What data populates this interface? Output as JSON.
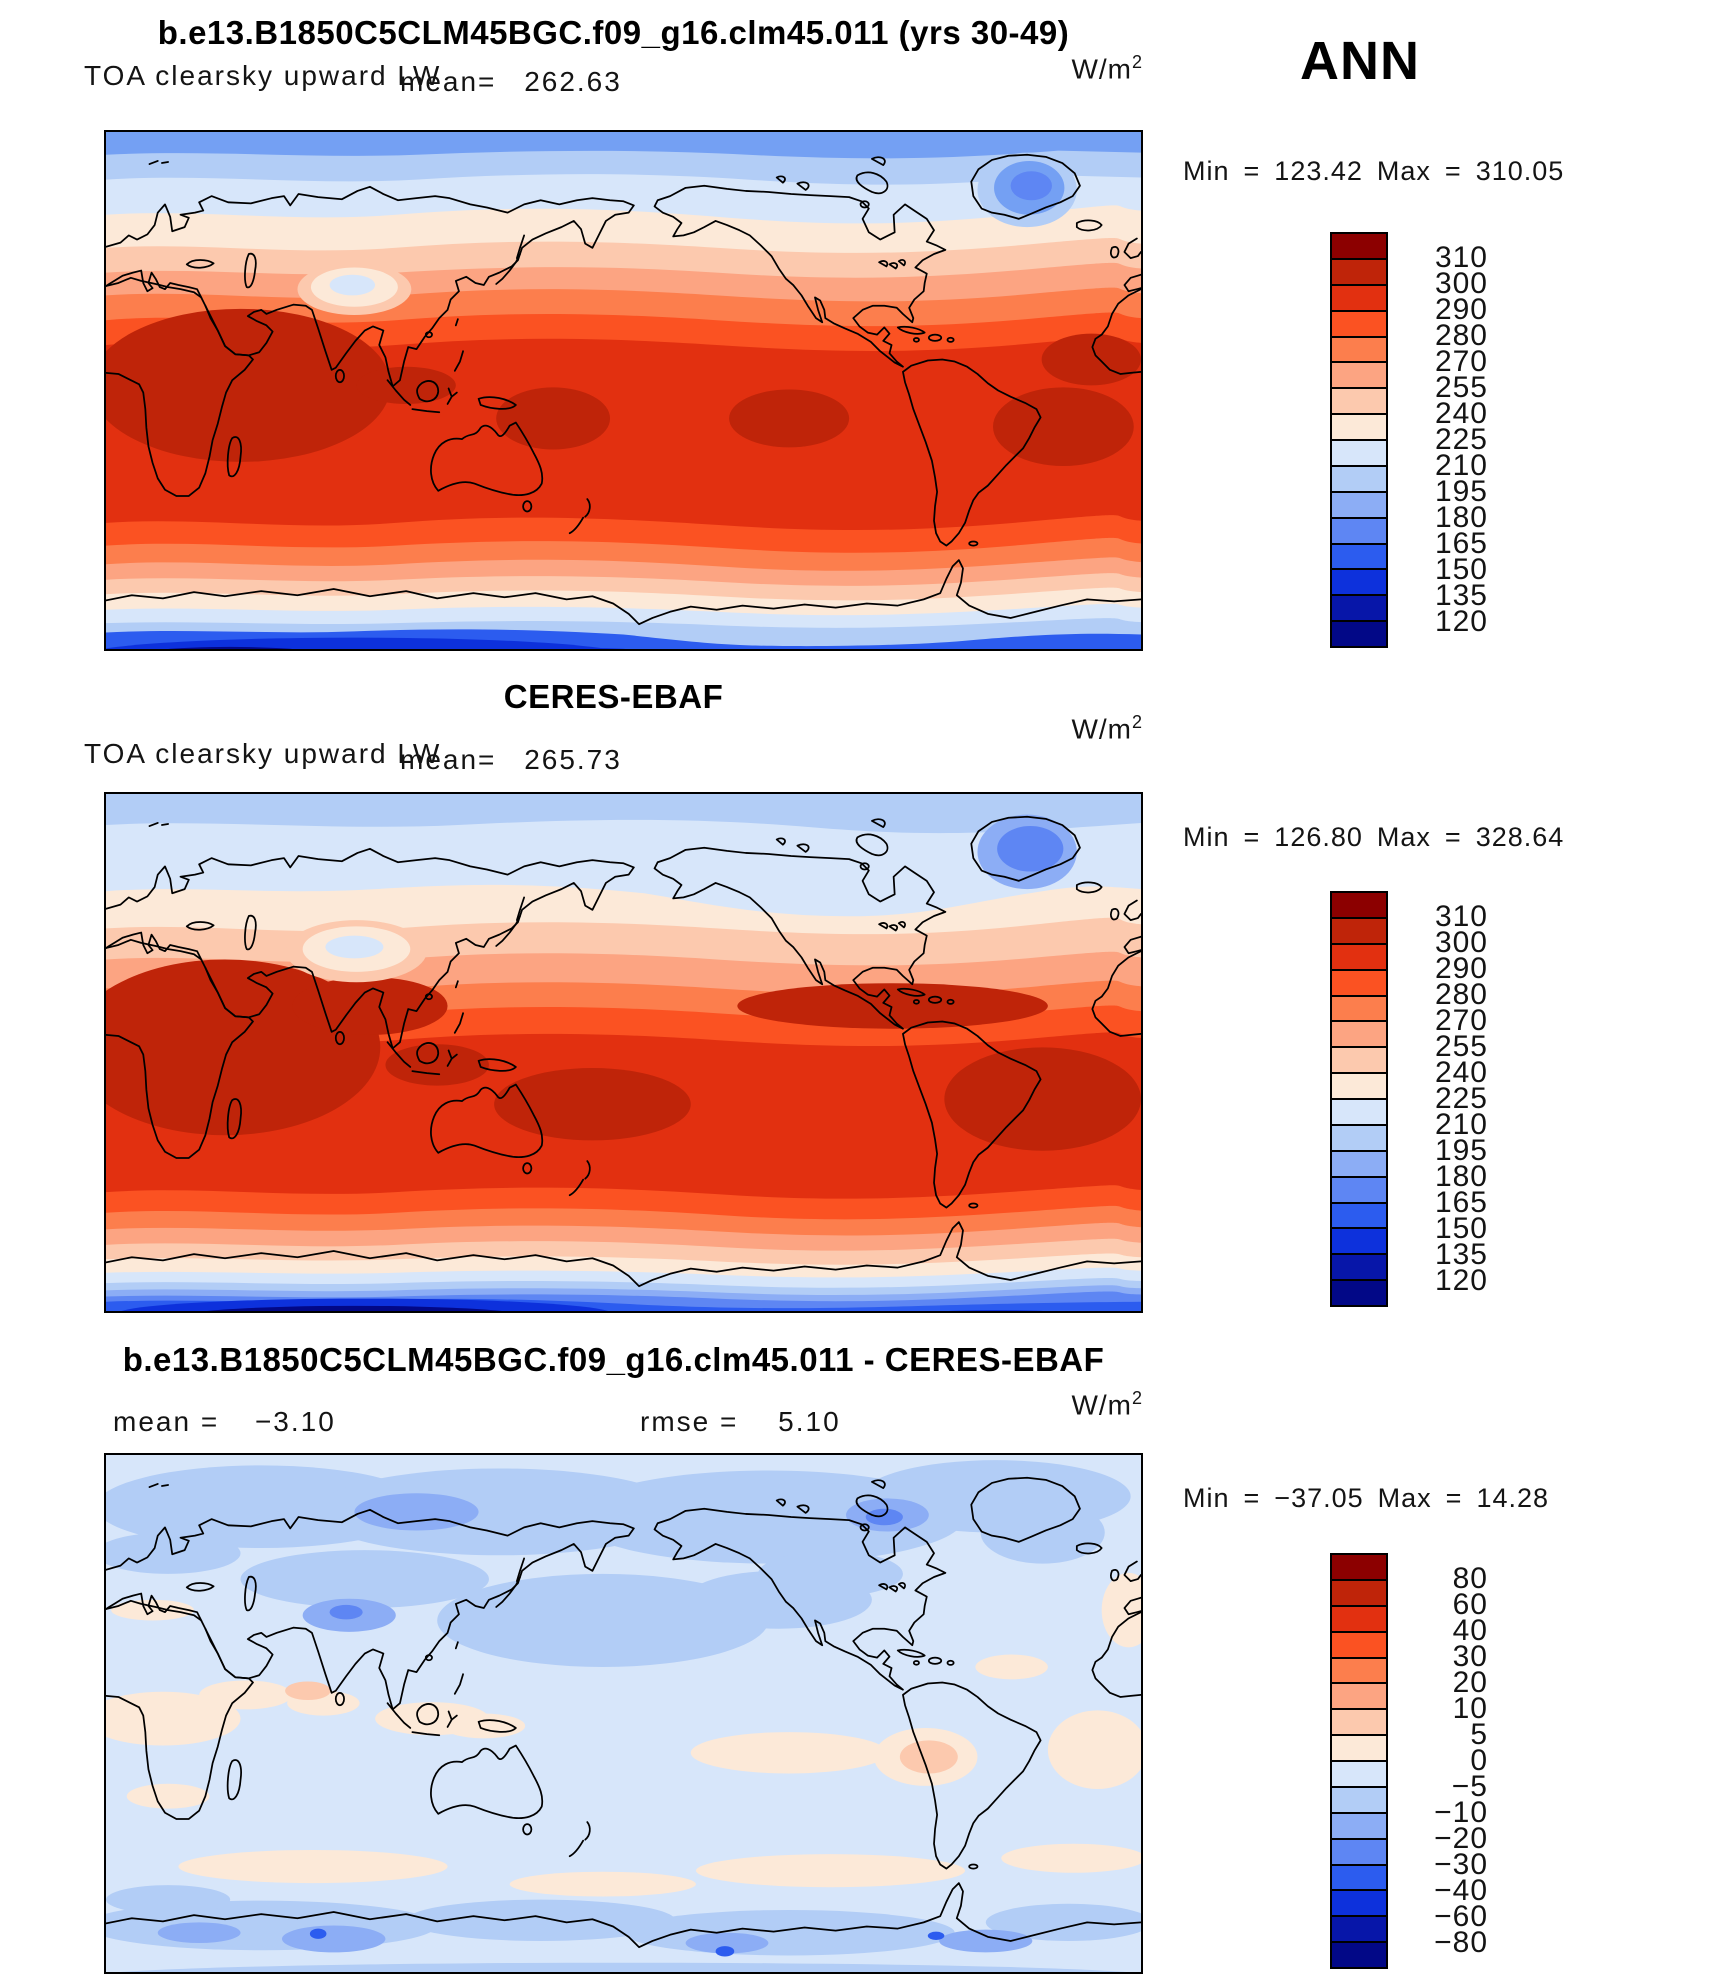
{
  "header": {
    "season_label": "ANN"
  },
  "units": {
    "base": "W/m",
    "exp": "2"
  },
  "palette": [
    "#8C0000",
    "#BF2409",
    "#E23010",
    "#FB5222",
    "#FC7E4D",
    "#FCA482",
    "#FCC9AE",
    "#FCE9D8",
    "#D7E6FA",
    "#B2CDF6",
    "#8CADF5",
    "#5E86F3",
    "#2C5CEF",
    "#0D31DC",
    "#0716A9",
    "#020887"
  ],
  "panels": [
    {
      "title": "b.e13.B1850C5CLM45BGC.f09_g16.clm45.011 (yrs 30-49)",
      "field_label": "TOA clearsky upward LW",
      "mean_label": "mean=",
      "mean_value": "262.63",
      "min_label": "Min",
      "eq": "=",
      "min_value": "123.42",
      "max_label": "Max",
      "max_value": "310.05",
      "colorbar_ticks": [
        "310",
        "300",
        "290",
        "280",
        "270",
        "255",
        "240",
        "225",
        "210",
        "195",
        "180",
        "165",
        "150",
        "135",
        "120"
      ]
    },
    {
      "title": "CERES-EBAF",
      "field_label": "TOA clearsky upward LW",
      "mean_label": "mean=",
      "mean_value": "265.73",
      "min_label": "Min",
      "eq": "=",
      "min_value": "126.80",
      "max_label": "Max",
      "max_value": "328.64",
      "colorbar_ticks": [
        "310",
        "300",
        "290",
        "280",
        "270",
        "255",
        "240",
        "225",
        "210",
        "195",
        "180",
        "165",
        "150",
        "135",
        "120"
      ]
    },
    {
      "title": "b.e13.B1850C5CLM45BGC.f09_g16.clm45.011 - CERES-EBAF",
      "mean_label": "mean =",
      "mean_value": "−3.10",
      "rmse_label": "rmse =",
      "rmse_value": "5.10",
      "min_label": "Min",
      "eq": "=",
      "min_value": "−37.05",
      "max_label": "Max",
      "max_value": "14.28",
      "colorbar_ticks": [
        "80",
        "60",
        "40",
        "30",
        "20",
        "10",
        "5",
        "0",
        "−5",
        "−10",
        "−20",
        "−30",
        "−40",
        "−60",
        "−80"
      ]
    }
  ],
  "chart_data": [
    {
      "type": "heatmap",
      "title": "b.e13.B1850C5CLM45BGC.f09_g16.clm45.011 (yrs 30-49)",
      "variable": "TOA clearsky upward LW",
      "season": "ANN",
      "units": "W/m2",
      "projection": "global cylindrical equirectangular, 0-360E, 90N-90S",
      "stats": {
        "mean": 262.63,
        "min": 123.42,
        "max": 310.05
      },
      "contour_levels": [
        120,
        135,
        150,
        165,
        180,
        195,
        210,
        225,
        240,
        255,
        270,
        280,
        290,
        300,
        310
      ],
      "legend_position": "right",
      "pattern": "high values (280-310) in tropics/subtropics, lows (120-165) over Antarctica, low (195-225) over Arctic and Greenland, pale minimum patch over Tibet"
    },
    {
      "type": "heatmap",
      "title": "CERES-EBAF",
      "variable": "TOA clearsky upward LW",
      "season": "ANN",
      "units": "W/m2",
      "projection": "global cylindrical equirectangular, 0-360E, 90N-90S",
      "stats": {
        "mean": 265.73,
        "min": 126.8,
        "max": 328.64
      },
      "contour_levels": [
        120,
        135,
        150,
        165,
        180,
        195,
        210,
        225,
        240,
        255,
        270,
        280,
        290,
        300,
        310
      ],
      "legend_position": "right",
      "pattern": "same structure as model but broader 290-310 maxima across subtropics and Caribbean"
    },
    {
      "type": "heatmap",
      "title": "b.e13.B1850C5CLM45BGC.f09_g16.clm45.011 - CERES-EBAF",
      "variable": "difference (model minus observations)",
      "season": "ANN",
      "units": "W/m2",
      "projection": "global cylindrical equirectangular, 0-360E, 90N-90S",
      "stats": {
        "mean": -3.1,
        "rmse": 5.1,
        "min": -37.05,
        "max": 14.28
      },
      "contour_levels": [
        -80,
        -60,
        -40,
        -30,
        -20,
        -10,
        -5,
        0,
        5,
        10,
        20,
        30,
        40,
        60,
        80
      ],
      "legend_position": "right",
      "pattern": "mostly -5 to 0 everywhere; -10 to -20 over northern high latitudes, Tibet and Baffin; small positive (0-10) patches over Sahara, Amazon, tropical oceans and 40S band"
    }
  ]
}
